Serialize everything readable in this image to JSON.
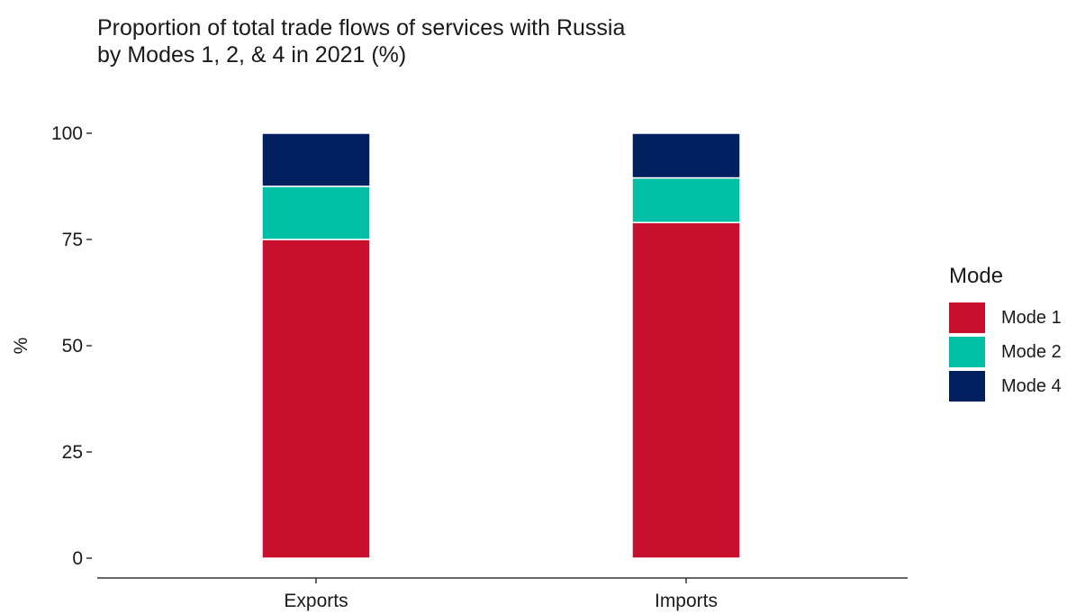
{
  "chart_data": {
    "type": "bar",
    "stacked": true,
    "title": "Proportion of total trade flows of services with Russia by Modes 1, 2, & 4 in 2021 (%)",
    "title_lines": [
      "Proportion of total trade flows of services with Russia",
      "by Modes 1, 2, & 4 in 2021 (%)"
    ],
    "xlabel": "",
    "ylabel": "%",
    "ylim": [
      0,
      100
    ],
    "yticks": [
      0,
      25,
      50,
      75,
      100
    ],
    "ytick_labels": [
      "0",
      "25",
      "50",
      "75",
      "100"
    ],
    "categories": [
      "Exports",
      "Imports"
    ],
    "series": [
      {
        "name": "Mode 1",
        "color": "#C8102E",
        "values": [
          75,
          79
        ]
      },
      {
        "name": "Mode 2",
        "color": "#00BFA5",
        "values": [
          12.5,
          10.5
        ]
      },
      {
        "name": "Mode 4",
        "color": "#002060",
        "values": [
          12.5,
          10.5
        ]
      }
    ],
    "legend": {
      "title": "Mode",
      "position": "right"
    },
    "grid": false
  }
}
